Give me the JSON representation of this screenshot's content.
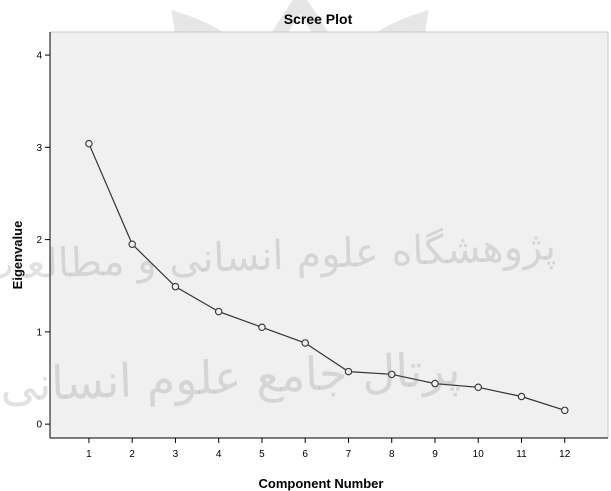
{
  "chart_data": {
    "type": "line",
    "title": "Scree Plot",
    "xlabel": "Component Number",
    "ylabel": "Eigenvalue",
    "x": [
      1,
      2,
      3,
      4,
      5,
      6,
      7,
      8,
      9,
      10,
      11,
      12
    ],
    "values": [
      3.04,
      1.95,
      1.49,
      1.22,
      1.05,
      0.88,
      0.57,
      0.54,
      0.44,
      0.4,
      0.3,
      0.15
    ],
    "xticks": [
      "1",
      "2",
      "3",
      "4",
      "5",
      "6",
      "7",
      "8",
      "9",
      "10",
      "11",
      "12"
    ],
    "yticks": [
      "0",
      "1",
      "2",
      "3",
      "4"
    ],
    "xlim": [
      0.1,
      13.0
    ],
    "ylim": [
      -0.15,
      4.25
    ],
    "grid": false,
    "colors": {
      "plot_background": "#f0f0f0",
      "line": "#333333",
      "marker_fill": "#f0f0f0"
    }
  },
  "watermark": {
    "line1": "پژوهشگاه علوم انسانی و مطالعات فرهنگی",
    "line2": "پرتال جامع علوم انسانی"
  }
}
